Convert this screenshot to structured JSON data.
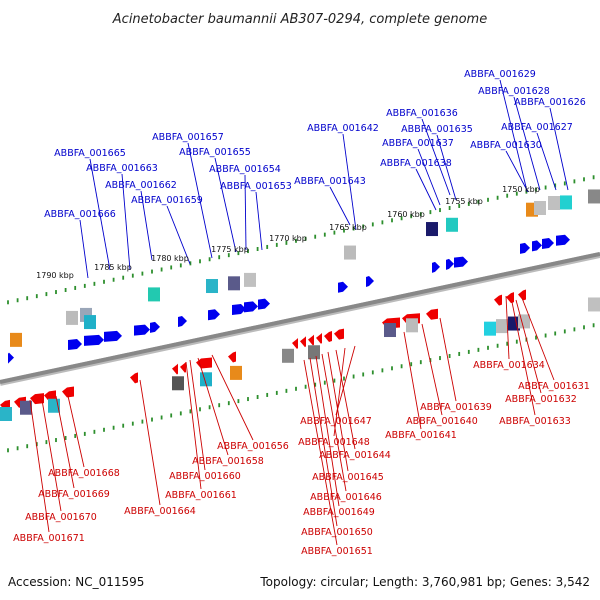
{
  "title": "Acinetobacter baumannii AB307-0294, complete genome",
  "footer": {
    "accession": "Accession: NC_011595",
    "topology": "Topology: circular; Length: 3,760,981 bp; Genes: 3,542"
  },
  "colors": {
    "top_labels": "#0000cc",
    "bottom_labels": "#cc0000",
    "forward_gene": "#0000ee",
    "reverse_gene": "#ee0000",
    "backbone": "#888888",
    "ticks": "#2d8f2d"
  },
  "kbp_ticks": [
    "1790 kbp",
    "1785 kbp",
    "1780 kbp",
    "1775 kbp",
    "1770 kbp",
    "1765 kbp",
    "1760 kbp",
    "1755 kbp",
    "1750 kbp"
  ],
  "top_gene_labels": [
    "ABBFA_001629",
    "ABBFA_001628",
    "ABBFA_001626",
    "ABBFA_001636",
    "ABBFA_001627",
    "ABBFA_001635",
    "ABBFA_001642",
    "ABBFA_001637",
    "ABBFA_001630",
    "ABBFA_001657",
    "ABBFA_001665",
    "ABBFA_001655",
    "ABBFA_001638",
    "ABBFA_001663",
    "ABBFA_001654",
    "ABBFA_001643",
    "ABBFA_001662",
    "ABBFA_001653",
    "ABBFA_001659",
    "ABBFA_001666"
  ],
  "bottom_gene_labels": [
    "ABBFA_001634",
    "ABBFA_001631",
    "ABBFA_001632",
    "ABBFA_001639",
    "ABBFA_001633",
    "ABBFA_001647",
    "ABBFA_001640",
    "ABBFA_001641",
    "ABBFA_001648",
    "ABBFA_001656",
    "ABBFA_001644",
    "ABBFA_001658",
    "ABBFA_001668",
    "ABBFA_001645",
    "ABBFA_001660",
    "ABBFA_001669",
    "ABBFA_001661",
    "ABBFA_001646",
    "ABBFA_001664",
    "ABBFA_001649",
    "ABBFA_001670",
    "ABBFA_001650",
    "ABBFA_001671",
    "ABBFA_001651"
  ]
}
